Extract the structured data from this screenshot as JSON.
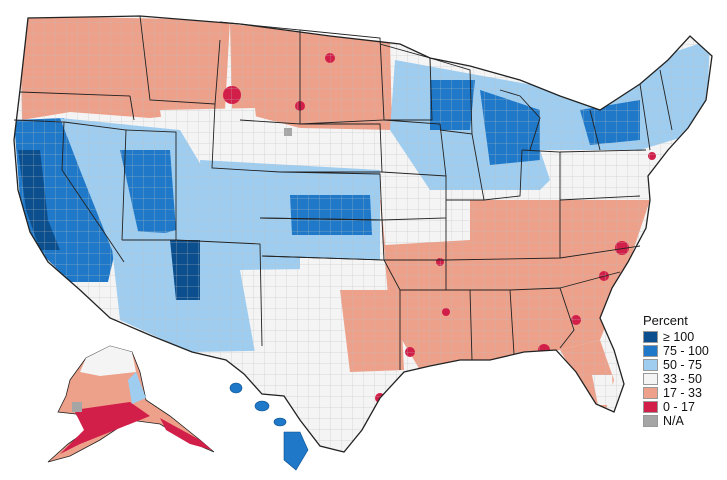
{
  "legend": {
    "title": "Percent",
    "items": [
      {
        "label": "≥ 100",
        "color": "#0b4f8f"
      },
      {
        "label": "75 - 100",
        "color": "#1f78c8"
      },
      {
        "label": "50 - 75",
        "color": "#9fcdf0"
      },
      {
        "label": "33 - 50",
        "color": "#f4f4f4"
      },
      {
        "label": "17 - 33",
        "color": "#eda08a"
      },
      {
        "label": "0 - 17",
        "color": "#d21f4a"
      },
      {
        "label": "N/A",
        "color": "#a5a5a5"
      }
    ]
  },
  "colors": {
    "state_border": "#222222",
    "county_border": "#b0b0b0",
    "background": "#ffffff"
  }
}
